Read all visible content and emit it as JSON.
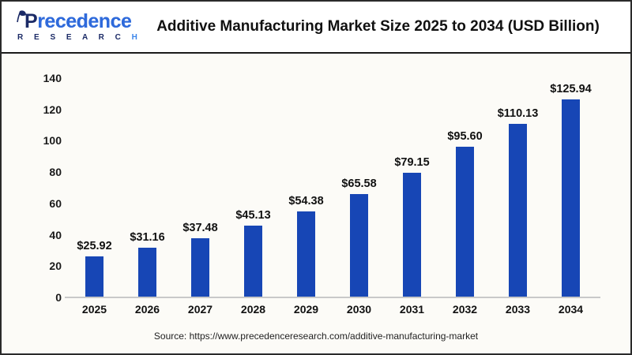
{
  "header": {
    "logo": {
      "brand_p": "P",
      "brand_rest": "recedence",
      "line2_main": "R E S E A R C",
      "line2_last": "H",
      "navy": "#1b2a66",
      "blue": "#3d86ea"
    },
    "title": "Additive Manufacturing Market Size 2025 to 2034 (USD Billion)"
  },
  "chart_data": {
    "type": "bar",
    "title": "Additive Manufacturing Market Size 2025 to 2034 (USD Billion)",
    "categories": [
      "2025",
      "2026",
      "2027",
      "2028",
      "2029",
      "2030",
      "2031",
      "2032",
      "2033",
      "2034"
    ],
    "values": [
      25.92,
      31.16,
      37.48,
      45.13,
      54.38,
      65.58,
      79.15,
      95.6,
      110.13,
      125.94
    ],
    "value_labels": [
      "$25.92",
      "$31.16",
      "$37.48",
      "$45.13",
      "$54.38",
      "$65.58",
      "$79.15",
      "$95.60",
      "$110.13",
      "$125.94"
    ],
    "unit": "USD Billion",
    "xlabel": "",
    "ylabel": "",
    "yticks": [
      0,
      20,
      40,
      60,
      80,
      100,
      120,
      140
    ],
    "ylim": [
      0,
      140
    ],
    "bar_color": "#1746b5",
    "grid": false,
    "legend": "none"
  },
  "footer": {
    "source": "Source: https://www.precedenceresearch.com/additive-manufacturing-market"
  }
}
